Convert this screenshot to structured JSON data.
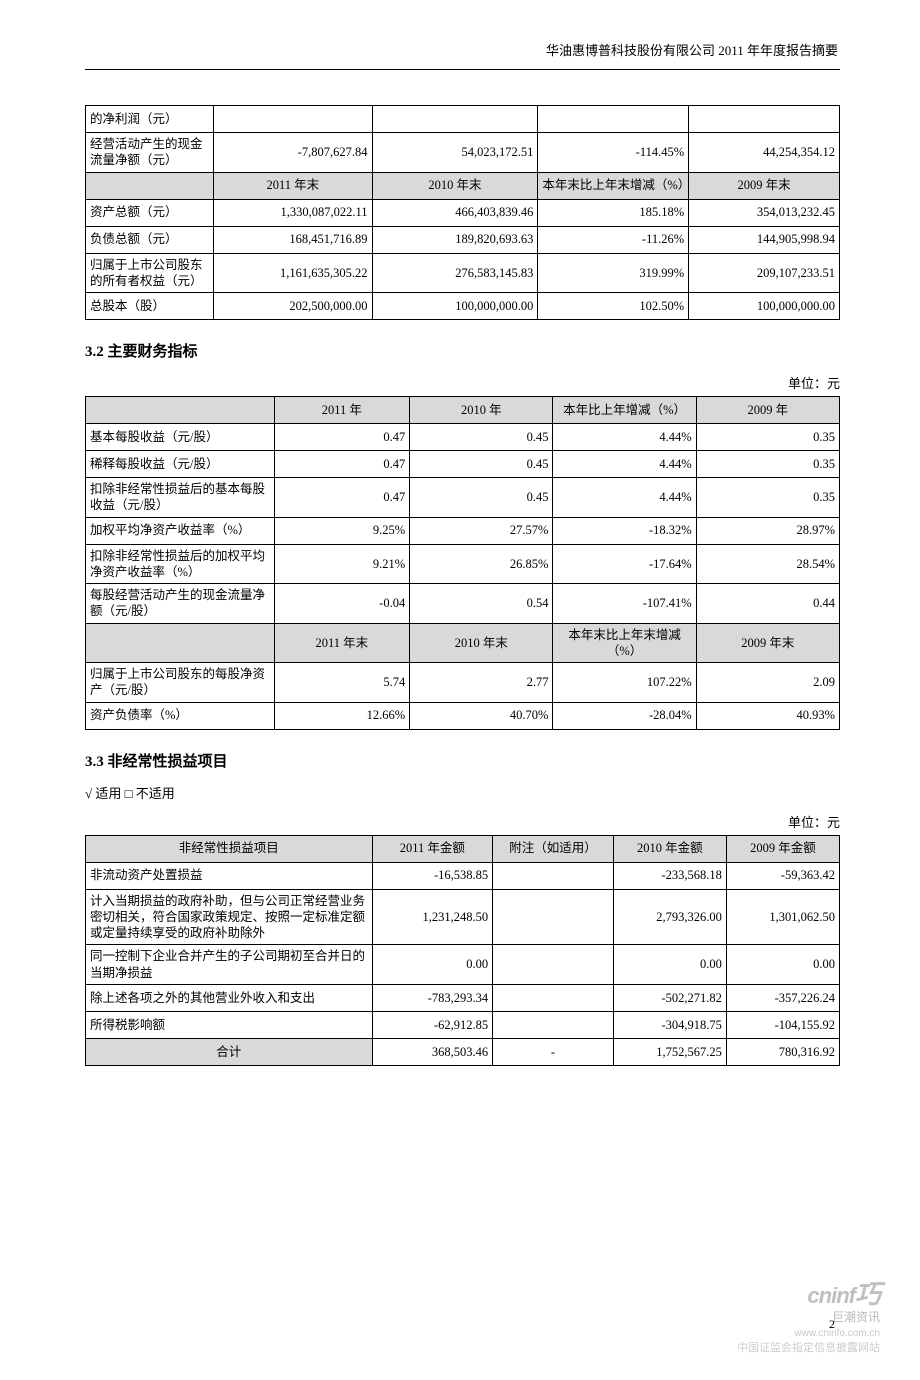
{
  "header": "华油惠博普科技股份有限公司 2011 年年度报告摘要",
  "page_number": "2",
  "watermark": {
    "logo": "cninf",
    "cn": "巨潮资讯",
    "url": "www.cninfo.com.cn",
    "bottom": "中国证监会指定信息披露网站"
  },
  "units": {
    "yuan": "单位：元"
  },
  "table1": {
    "rows": [
      {
        "label": "的净利润（元）",
        "c1": "",
        "c2": "",
        "c3": "",
        "c4": ""
      },
      {
        "label": "经营活动产生的现金流量净额（元）",
        "c1": "-7,807,627.84",
        "c2": "54,023,172.51",
        "c3": "-114.45%",
        "c4": "44,254,354.12"
      }
    ],
    "hdr": {
      "c1": "2011 年末",
      "c2": "2010 年末",
      "c3": "本年末比上年末增减（%）",
      "c4": "2009 年末"
    },
    "rows2": [
      {
        "label": "资产总额（元）",
        "c1": "1,330,087,022.11",
        "c2": "466,403,839.46",
        "c3": "185.18%",
        "c4": "354,013,232.45"
      },
      {
        "label": "负债总额（元）",
        "c1": "168,451,716.89",
        "c2": "189,820,693.63",
        "c3": "-11.26%",
        "c4": "144,905,998.94"
      },
      {
        "label": "归属于上市公司股东的所有者权益（元）",
        "c1": "1,161,635,305.22",
        "c2": "276,583,145.83",
        "c3": "319.99%",
        "c4": "209,107,233.51"
      },
      {
        "label": "总股本（股）",
        "c1": "202,500,000.00",
        "c2": "100,000,000.00",
        "c3": "102.50%",
        "c4": "100,000,000.00"
      }
    ],
    "colw": {
      "c0": "17%",
      "c1": "21%",
      "c2": "22%",
      "c3": "20%",
      "c4": "20%"
    }
  },
  "section32": {
    "title": "3.2 主要财务指标",
    "hdr": {
      "c1": "2011 年",
      "c2": "2010 年",
      "c3": "本年比上年增减（%）",
      "c4": "2009 年"
    },
    "rows": [
      {
        "label": "基本每股收益（元/股）",
        "c1": "0.47",
        "c2": "0.45",
        "c3": "4.44%",
        "c4": "0.35"
      },
      {
        "label": "稀释每股收益（元/股）",
        "c1": "0.47",
        "c2": "0.45",
        "c3": "4.44%",
        "c4": "0.35"
      },
      {
        "label": "扣除非经常性损益后的基本每股收益（元/股）",
        "c1": "0.47",
        "c2": "0.45",
        "c3": "4.44%",
        "c4": "0.35"
      },
      {
        "label": "加权平均净资产收益率（%）",
        "c1": "9.25%",
        "c2": "27.57%",
        "c3": "-18.32%",
        "c4": "28.97%"
      },
      {
        "label": "扣除非经常性损益后的加权平均净资产收益率（%）",
        "c1": "9.21%",
        "c2": "26.85%",
        "c3": "-17.64%",
        "c4": "28.54%"
      },
      {
        "label": "每股经营活动产生的现金流量净额（元/股）",
        "c1": "-0.04",
        "c2": "0.54",
        "c3": "-107.41%",
        "c4": "0.44"
      }
    ],
    "hdr2": {
      "c1": "2011 年末",
      "c2": "2010 年末",
      "c3": "本年末比上年末增减（%）",
      "c4": "2009 年末"
    },
    "rows2": [
      {
        "label": "归属于上市公司股东的每股净资产（元/股）",
        "c1": "5.74",
        "c2": "2.77",
        "c3": "107.22%",
        "c4": "2.09"
      },
      {
        "label": "资产负债率（%）",
        "c1": "12.66%",
        "c2": "40.70%",
        "c3": "-28.04%",
        "c4": "40.93%"
      }
    ],
    "colw": {
      "c0": "25%",
      "c1": "18%",
      "c2": "19%",
      "c3": "19%",
      "c4": "19%"
    }
  },
  "section33": {
    "title": "3.3 非经常性损益项目",
    "applicable": "√ 适用 □ 不适用",
    "hdr": {
      "c0": "非经常性损益项目",
      "c1": "2011 年金额",
      "c2": "附注（如适用）",
      "c3": "2010 年金额",
      "c4": "2009 年金额"
    },
    "rows": [
      {
        "label": "非流动资产处置损益",
        "c1": "-16,538.85",
        "c2": "",
        "c3": "-233,568.18",
        "c4": "-59,363.42"
      },
      {
        "label": "计入当期损益的政府补助，但与公司正常经营业务密切相关，符合国家政策规定、按照一定标准定额或定量持续享受的政府补助除外",
        "c1": "1,231,248.50",
        "c2": "",
        "c3": "2,793,326.00",
        "c4": "1,301,062.50"
      },
      {
        "label": "同一控制下企业合并产生的子公司期初至合并日的当期净损益",
        "c1": "0.00",
        "c2": "",
        "c3": "0.00",
        "c4": "0.00"
      },
      {
        "label": "除上述各项之外的其他营业外收入和支出",
        "c1": "-783,293.34",
        "c2": "",
        "c3": "-502,271.82",
        "c4": "-357,226.24"
      },
      {
        "label": "所得税影响额",
        "c1": "-62,912.85",
        "c2": "",
        "c3": "-304,918.75",
        "c4": "-104,155.92"
      }
    ],
    "total": {
      "label": "合计",
      "c1": "368,503.46",
      "c2": "-",
      "c3": "1,752,567.25",
      "c4": "780,316.92"
    },
    "colw": {
      "c0": "38%",
      "c1": "16%",
      "c2": "16%",
      "c3": "15%",
      "c4": "15%"
    }
  }
}
